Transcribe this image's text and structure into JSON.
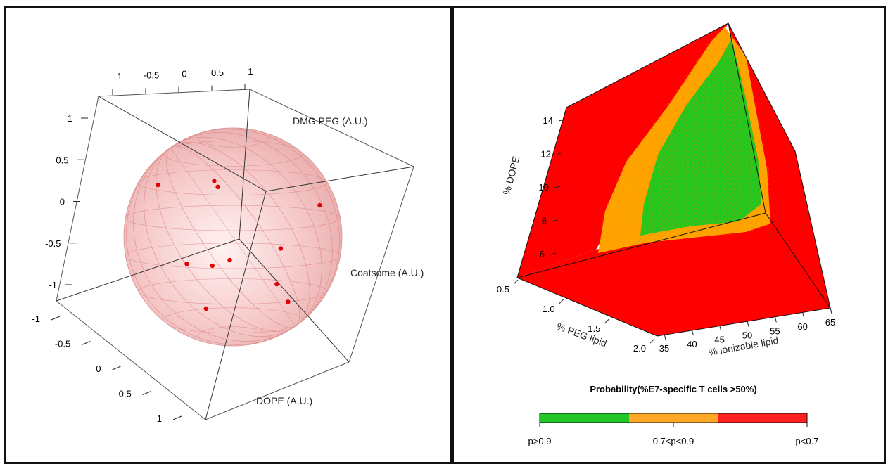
{
  "chart_data": [
    {
      "type": "scatter",
      "variant": "3d-sphere-design",
      "axes": {
        "x": {
          "label": "Coatsome (A.U.)",
          "ticks": [
            "-1",
            "-0.5",
            "0",
            "0.5",
            "1"
          ],
          "range": [
            -1,
            1
          ]
        },
        "y": {
          "label": "DOPE (A.U.)",
          "ticks": [
            "-1",
            "-0.5",
            "0",
            "0.5",
            "1"
          ],
          "range": [
            -1,
            1
          ]
        },
        "z": {
          "label": "DMG PEG (A.U.)",
          "ticks": [
            "1",
            "0.5",
            "0",
            "-0.5",
            "-1"
          ],
          "range": [
            -1,
            1
          ]
        }
      },
      "top_ticks": [
        "-1",
        "-0.5",
        "0",
        "0.5",
        "1"
      ],
      "sphere_color": "#f4b6b6",
      "point_color": "#e00000",
      "points": [
        {
          "x": -0.05,
          "y": 0.9,
          "z": 0.7
        },
        {
          "x": 0.0,
          "y": 0.95,
          "z": 0.65
        },
        {
          "x": -0.8,
          "y": 0.2,
          "z": 0.55
        },
        {
          "x": 0.95,
          "y": -0.1,
          "z": 0.3
        },
        {
          "x": 0.55,
          "y": 0.1,
          "z": -0.1
        },
        {
          "x": 0.0,
          "y": 0.2,
          "z": -0.2
        },
        {
          "x": -0.55,
          "y": -0.2,
          "z": -0.3
        },
        {
          "x": -0.3,
          "y": -0.4,
          "z": -0.35
        },
        {
          "x": 0.4,
          "y": -0.5,
          "z": -0.55
        },
        {
          "x": 0.5,
          "y": -0.65,
          "z": -0.75
        },
        {
          "x": -0.45,
          "y": -0.85,
          "z": -0.85
        }
      ]
    },
    {
      "type": "heatmap",
      "variant": "3d-probability-cube",
      "axes": {
        "x": {
          "label": "% ionizable lipid",
          "ticks": [
            "35",
            "40",
            "45",
            "50",
            "55",
            "60",
            "65"
          ],
          "range": [
            35,
            65
          ]
        },
        "y": {
          "label": "% PEG lipid",
          "ticks": [
            "0.5",
            "1.0",
            "1.5",
            "2.0"
          ],
          "range": [
            0.5,
            2.0
          ]
        },
        "z": {
          "label": "% DOPE",
          "ticks": [
            "6",
            "8",
            "10",
            "12",
            "14"
          ],
          "range": [
            5,
            15
          ]
        }
      },
      "legend": {
        "title": "Probability(%E7-specific T cells >50%)",
        "categories": [
          {
            "label": "p>0.9",
            "color": "#22c828"
          },
          {
            "label": "0.7<p<0.9",
            "color": "#ffa828"
          },
          {
            "label": "p<0.7",
            "color": "#ff2020"
          }
        ]
      },
      "colors": {
        "red": "#ff0000",
        "orange": "#ffa500",
        "green": "#1ec81e"
      }
    }
  ]
}
